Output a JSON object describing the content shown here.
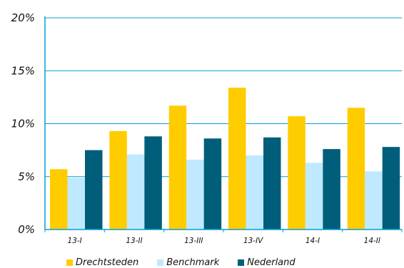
{
  "chart_data": {
    "type": "bar",
    "title": "",
    "xlabel": "",
    "ylabel": "",
    "categories": [
      "13-I",
      "13-II",
      "13-III",
      "13-IV",
      "14-I",
      "14-II"
    ],
    "series": [
      {
        "name": "Drechtsteden",
        "color": "#FFCC00",
        "values": [
          5.7,
          9.3,
          11.7,
          13.4,
          10.7,
          11.5
        ]
      },
      {
        "name": "Benchmark",
        "color": "#BFE9FF",
        "values": [
          4.9,
          7.1,
          6.6,
          7.0,
          6.3,
          5.5
        ]
      },
      {
        "name": "Nederland",
        "color": "#005E7A",
        "values": [
          7.5,
          8.8,
          8.6,
          8.7,
          7.6,
          7.8
        ]
      }
    ],
    "ylim": [
      0,
      20
    ],
    "yticks": [
      0,
      5,
      10,
      15,
      20
    ],
    "ytick_labels": [
      "0%",
      "5%",
      "10%",
      "15%",
      "20%"
    ],
    "grid": true,
    "grid_color": "#00A0DC",
    "legend_position": "bottom"
  }
}
